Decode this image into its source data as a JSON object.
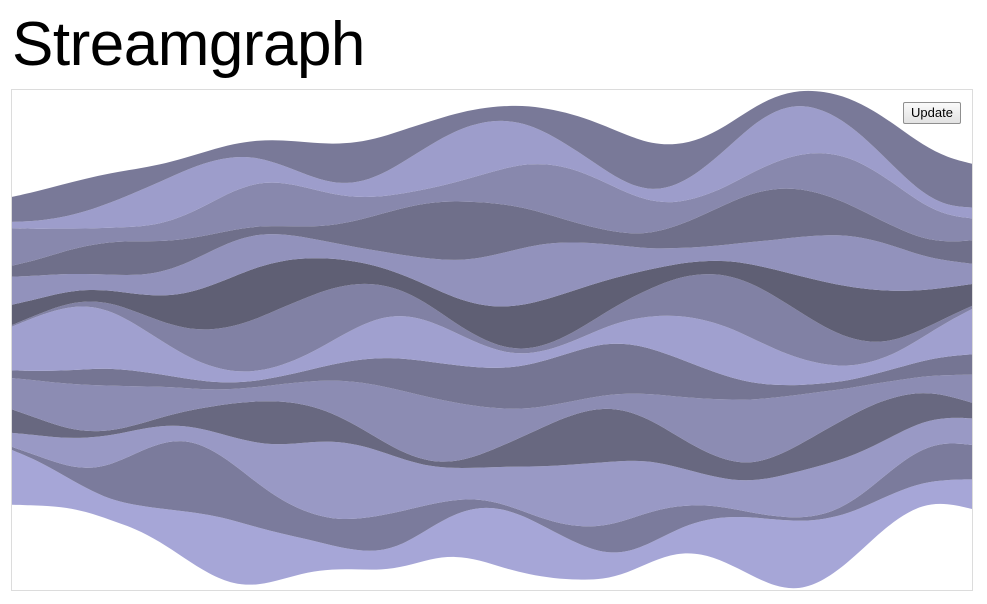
{
  "page": {
    "title": "Streamgraph"
  },
  "controls": {
    "update_label": "Update"
  },
  "chart_data": {
    "type": "area",
    "layout": "streamgraph",
    "offset": "wiggle",
    "curve": "basis",
    "axes_visible": false,
    "grid": false,
    "legend": "none",
    "color_range": [
      "#aad",
      "#556"
    ],
    "x": [
      0,
      1,
      2,
      3,
      4,
      5,
      6,
      7,
      8,
      9,
      10,
      11,
      12,
      13,
      14,
      15,
      16,
      17,
      18,
      19,
      20,
      21,
      22,
      23,
      24,
      25,
      26,
      27,
      28,
      29,
      30,
      31,
      32,
      33,
      34,
      35,
      36,
      37,
      38,
      39
    ],
    "series": [
      {
        "values": [
          0.7,
          0.58,
          0.42,
          0.3,
          0.26,
          0.3,
          0.42,
          0.6,
          0.76,
          0.82,
          0.74,
          0.58,
          0.42,
          0.3,
          0.24,
          0.24,
          0.3,
          0.4,
          0.54,
          0.68,
          0.76,
          0.72,
          0.6,
          0.46,
          0.34,
          0.26,
          0.24,
          0.3,
          0.42,
          0.58,
          0.74,
          0.86,
          0.88,
          0.78,
          0.62,
          0.46,
          0.34,
          0.28,
          0.3,
          0.38
        ]
      },
      {
        "values": [
          0.04,
          0.06,
          0.12,
          0.24,
          0.44,
          0.66,
          0.84,
          0.92,
          0.86,
          0.72,
          0.56,
          0.42,
          0.34,
          0.34,
          0.4,
          0.46,
          0.42,
          0.3,
          0.18,
          0.1,
          0.06,
          0.06,
          0.12,
          0.22,
          0.34,
          0.42,
          0.4,
          0.3,
          0.2,
          0.12,
          0.06,
          0.04,
          0.04,
          0.06,
          0.12,
          0.22,
          0.34,
          0.44,
          0.48,
          0.44
        ]
      },
      {
        "values": [
          0.18,
          0.26,
          0.34,
          0.4,
          0.38,
          0.3,
          0.22,
          0.18,
          0.22,
          0.34,
          0.52,
          0.72,
          0.9,
          1.0,
          0.96,
          0.82,
          0.64,
          0.48,
          0.4,
          0.4,
          0.48,
          0.6,
          0.72,
          0.8,
          0.82,
          0.76,
          0.64,
          0.5,
          0.4,
          0.36,
          0.4,
          0.5,
          0.6,
          0.64,
          0.6,
          0.5,
          0.4,
          0.34,
          0.32,
          0.34
        ]
      },
      {
        "values": [
          0.3,
          0.22,
          0.14,
          0.08,
          0.06,
          0.06,
          0.1,
          0.18,
          0.3,
          0.44,
          0.54,
          0.56,
          0.48,
          0.36,
          0.24,
          0.14,
          0.08,
          0.06,
          0.08,
          0.16,
          0.28,
          0.42,
          0.56,
          0.66,
          0.7,
          0.64,
          0.52,
          0.4,
          0.3,
          0.24,
          0.22,
          0.26,
          0.34,
          0.44,
          0.52,
          0.54,
          0.48,
          0.38,
          0.28,
          0.2
        ]
      },
      {
        "values": [
          0.4,
          0.48,
          0.56,
          0.6,
          0.58,
          0.5,
          0.4,
          0.3,
          0.22,
          0.18,
          0.18,
          0.22,
          0.3,
          0.42,
          0.56,
          0.7,
          0.8,
          0.82,
          0.76,
          0.62,
          0.46,
          0.32,
          0.22,
          0.16,
          0.16,
          0.22,
          0.34,
          0.5,
          0.66,
          0.78,
          0.82,
          0.76,
          0.64,
          0.5,
          0.36,
          0.26,
          0.2,
          0.2,
          0.26,
          0.36
        ]
      },
      {
        "values": [
          0.1,
          0.12,
          0.16,
          0.2,
          0.22,
          0.2,
          0.16,
          0.12,
          0.1,
          0.08,
          0.08,
          0.1,
          0.14,
          0.2,
          0.28,
          0.36,
          0.42,
          0.46,
          0.48,
          0.5,
          0.52,
          0.56,
          0.6,
          0.64,
          0.66,
          0.64,
          0.58,
          0.5,
          0.4,
          0.3,
          0.22,
          0.16,
          0.12,
          0.1,
          0.1,
          0.12,
          0.16,
          0.2,
          0.24,
          0.26
        ]
      },
      {
        "values": [
          0.56,
          0.7,
          0.8,
          0.82,
          0.74,
          0.6,
          0.44,
          0.3,
          0.2,
          0.14,
          0.12,
          0.14,
          0.2,
          0.3,
          0.42,
          0.52,
          0.56,
          0.52,
          0.42,
          0.3,
          0.2,
          0.14,
          0.12,
          0.14,
          0.2,
          0.3,
          0.42,
          0.54,
          0.62,
          0.64,
          0.58,
          0.46,
          0.34,
          0.24,
          0.18,
          0.16,
          0.2,
          0.3,
          0.44,
          0.58
        ]
      },
      {
        "values": [
          0.02,
          0.02,
          0.04,
          0.06,
          0.1,
          0.16,
          0.24,
          0.34,
          0.46,
          0.58,
          0.68,
          0.74,
          0.74,
          0.68,
          0.56,
          0.42,
          0.3,
          0.2,
          0.12,
          0.08,
          0.06,
          0.06,
          0.08,
          0.12,
          0.18,
          0.26,
          0.36,
          0.48,
          0.58,
          0.66,
          0.7,
          0.68,
          0.6,
          0.48,
          0.36,
          0.24,
          0.16,
          0.1,
          0.06,
          0.04
        ]
      },
      {
        "values": [
          0.26,
          0.2,
          0.16,
          0.14,
          0.16,
          0.22,
          0.32,
          0.44,
          0.56,
          0.64,
          0.66,
          0.6,
          0.5,
          0.38,
          0.28,
          0.22,
          0.2,
          0.24,
          0.32,
          0.42,
          0.52,
          0.58,
          0.58,
          0.52,
          0.42,
          0.32,
          0.24,
          0.18,
          0.16,
          0.18,
          0.24,
          0.34,
          0.46,
          0.58,
          0.66,
          0.68,
          0.62,
          0.5,
          0.38,
          0.28
        ]
      },
      {
        "values": [
          0.36,
          0.3,
          0.24,
          0.2,
          0.2,
          0.24,
          0.3,
          0.38,
          0.44,
          0.46,
          0.42,
          0.34,
          0.26,
          0.2,
          0.18,
          0.2,
          0.26,
          0.36,
          0.48,
          0.6,
          0.7,
          0.74,
          0.7,
          0.6,
          0.48,
          0.36,
          0.26,
          0.2,
          0.18,
          0.2,
          0.28,
          0.38,
          0.5,
          0.6,
          0.66,
          0.64,
          0.56,
          0.44,
          0.34,
          0.26
        ]
      },
      {
        "values": [
          0.14,
          0.2,
          0.28,
          0.36,
          0.42,
          0.44,
          0.4,
          0.32,
          0.22,
          0.14,
          0.1,
          0.1,
          0.14,
          0.22,
          0.34,
          0.48,
          0.62,
          0.72,
          0.76,
          0.72,
          0.62,
          0.48,
          0.34,
          0.24,
          0.18,
          0.16,
          0.2,
          0.28,
          0.4,
          0.52,
          0.62,
          0.66,
          0.62,
          0.52,
          0.4,
          0.3,
          0.24,
          0.22,
          0.24,
          0.3
        ]
      },
      {
        "values": [
          0.48,
          0.4,
          0.3,
          0.22,
          0.18,
          0.18,
          0.22,
          0.3,
          0.4,
          0.5,
          0.56,
          0.56,
          0.5,
          0.4,
          0.3,
          0.22,
          0.18,
          0.18,
          0.24,
          0.34,
          0.46,
          0.58,
          0.66,
          0.68,
          0.62,
          0.52,
          0.4,
          0.3,
          0.24,
          0.22,
          0.26,
          0.34,
          0.44,
          0.54,
          0.6,
          0.6,
          0.54,
          0.44,
          0.34,
          0.28
        ]
      },
      {
        "values": [
          0.08,
          0.1,
          0.14,
          0.22,
          0.32,
          0.44,
          0.54,
          0.58,
          0.54,
          0.44,
          0.32,
          0.22,
          0.16,
          0.14,
          0.18,
          0.28,
          0.42,
          0.56,
          0.66,
          0.68,
          0.62,
          0.5,
          0.36,
          0.24,
          0.16,
          0.12,
          0.14,
          0.22,
          0.34,
          0.48,
          0.6,
          0.66,
          0.64,
          0.54,
          0.42,
          0.3,
          0.2,
          0.14,
          0.12,
          0.14
        ]
      },
      {
        "values": [
          0.32,
          0.38,
          0.42,
          0.42,
          0.38,
          0.3,
          0.22,
          0.16,
          0.14,
          0.16,
          0.22,
          0.32,
          0.42,
          0.5,
          0.52,
          0.48,
          0.4,
          0.3,
          0.22,
          0.18,
          0.18,
          0.24,
          0.34,
          0.46,
          0.56,
          0.62,
          0.6,
          0.52,
          0.4,
          0.3,
          0.22,
          0.18,
          0.18,
          0.24,
          0.34,
          0.46,
          0.56,
          0.62,
          0.62,
          0.56
        ]
      }
    ]
  }
}
